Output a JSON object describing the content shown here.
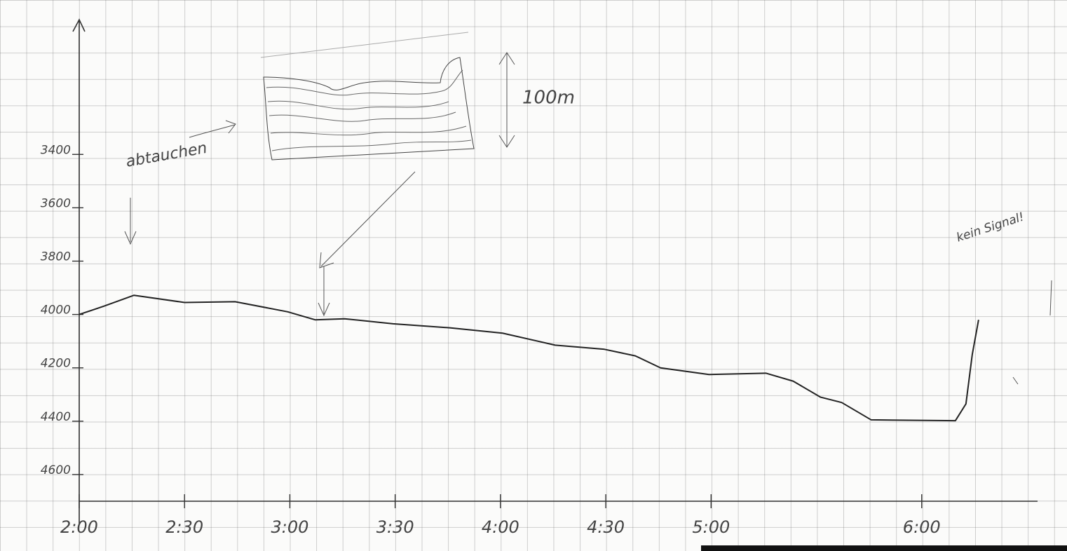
{
  "chart_data": {
    "type": "line",
    "x": [
      2.0,
      2.12,
      2.26,
      2.5,
      2.74,
      2.99,
      3.12,
      3.26,
      3.49,
      3.76,
      4.01,
      4.26,
      4.49,
      4.64,
      4.76,
      4.99,
      5.26,
      5.39,
      5.52,
      5.62,
      5.76,
      6.16,
      6.21,
      6.24,
      6.27
    ],
    "series": [
      {
        "color": "#222",
        "values": [
          4000,
          3968,
          3928,
          3955,
          3952,
          3990,
          4020,
          4016,
          4035,
          4050,
          4070,
          4115,
          4130,
          4155,
          4200,
          4225,
          4220,
          4250,
          4310,
          4330,
          4395,
          4398,
          4335,
          4150,
          4020
        ]
      }
    ],
    "xlim": [
      2,
      6.55
    ],
    "xticks": [
      {
        "value": 2,
        "label": "2:00"
      },
      {
        "value": 2.5,
        "label": "2:30"
      },
      {
        "value": 3,
        "label": "3:00"
      },
      {
        "value": 3.5,
        "label": "3:30"
      },
      {
        "value": 4,
        "label": "4:00"
      },
      {
        "value": 4.5,
        "label": "4:30"
      },
      {
        "value": 5,
        "label": "5:00"
      },
      {
        "value": 6,
        "label": "6:00"
      }
    ],
    "ylim": [
      4700,
      2900
    ],
    "yticks": [
      3400,
      3600,
      3800,
      4000,
      4200,
      4400,
      4600
    ]
  },
  "scale_note": "100m",
  "dive_note": "abtauchen",
  "signal_note": "kein Signal!"
}
